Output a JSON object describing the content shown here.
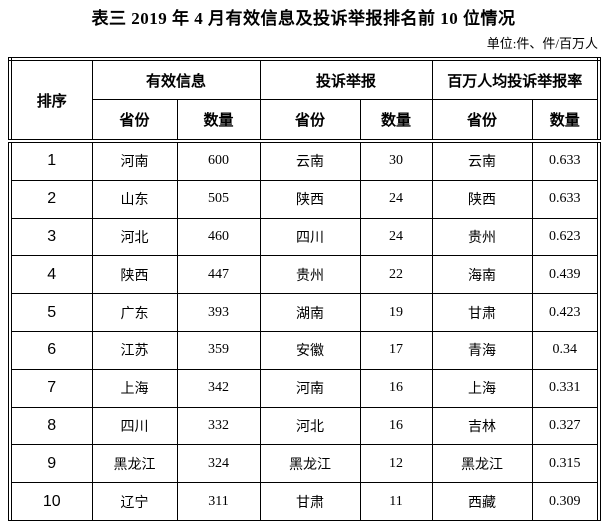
{
  "page": {
    "title": "表三 2019 年 4 月有效信息及投诉举报排名前 10 位情况",
    "unit_note": "单位:件、件/百万人"
  },
  "table": {
    "rank_header": "排序",
    "group_headers": [
      "有效信息",
      "投诉举报",
      "百万人均投诉举报率"
    ],
    "sub_headers": [
      "省份",
      "数量",
      "省份",
      "数量",
      "省份",
      "数量"
    ],
    "rows": [
      [
        "1",
        "河南",
        "600",
        "云南",
        "30",
        "云南",
        "0.633"
      ],
      [
        "2",
        "山东",
        "505",
        "陕西",
        "24",
        "陕西",
        "0.633"
      ],
      [
        "3",
        "河北",
        "460",
        "四川",
        "24",
        "贵州",
        "0.623"
      ],
      [
        "4",
        "陕西",
        "447",
        "贵州",
        "22",
        "海南",
        "0.439"
      ],
      [
        "5",
        "广东",
        "393",
        "湖南",
        "19",
        "甘肃",
        "0.423"
      ],
      [
        "6",
        "江苏",
        "359",
        "安徽",
        "17",
        "青海",
        "0.34"
      ],
      [
        "7",
        "上海",
        "342",
        "河南",
        "16",
        "上海",
        "0.331"
      ],
      [
        "8",
        "四川",
        "332",
        "河北",
        "16",
        "吉林",
        "0.327"
      ],
      [
        "9",
        "黑龙江",
        "324",
        "黑龙江",
        "12",
        "黑龙江",
        "0.315"
      ],
      [
        "10",
        "辽宁",
        "311",
        "甘肃",
        "11",
        "西藏",
        "0.309"
      ]
    ]
  }
}
